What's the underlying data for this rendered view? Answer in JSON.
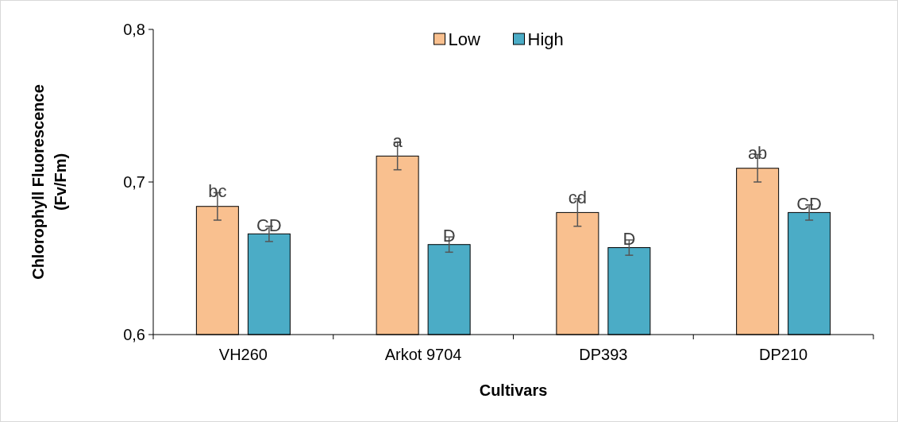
{
  "chart_data": {
    "type": "bar",
    "xlabel": "Cultivars",
    "ylabel": "Chlorophyll Fluorescence\n(Fv/Fm)",
    "categories": [
      "VH260",
      "Arkot 9704",
      "DP393",
      "DP210"
    ],
    "series": [
      {
        "name": "Low",
        "color": "#f9c08f",
        "values": [
          0.684,
          0.717,
          0.68,
          0.709
        ],
        "errors": [
          0.009,
          0.009,
          0.009,
          0.009
        ],
        "value_labels": [
          "bc",
          "a",
          "cd",
          "ab"
        ]
      },
      {
        "name": "High",
        "color": "#4bacc6",
        "values": [
          0.666,
          0.659,
          0.657,
          0.68
        ],
        "errors": [
          0.005,
          0.005,
          0.005,
          0.005
        ],
        "value_labels": [
          "CD",
          "D",
          "D",
          "CD"
        ]
      }
    ],
    "ylim": [
      0.6,
      0.8
    ],
    "yticks": [
      {
        "value": 0.6,
        "label": "0,6"
      },
      {
        "value": 0.7,
        "label": "0,7"
      },
      {
        "value": 0.8,
        "label": "0,8"
      }
    ],
    "legend": "top"
  }
}
